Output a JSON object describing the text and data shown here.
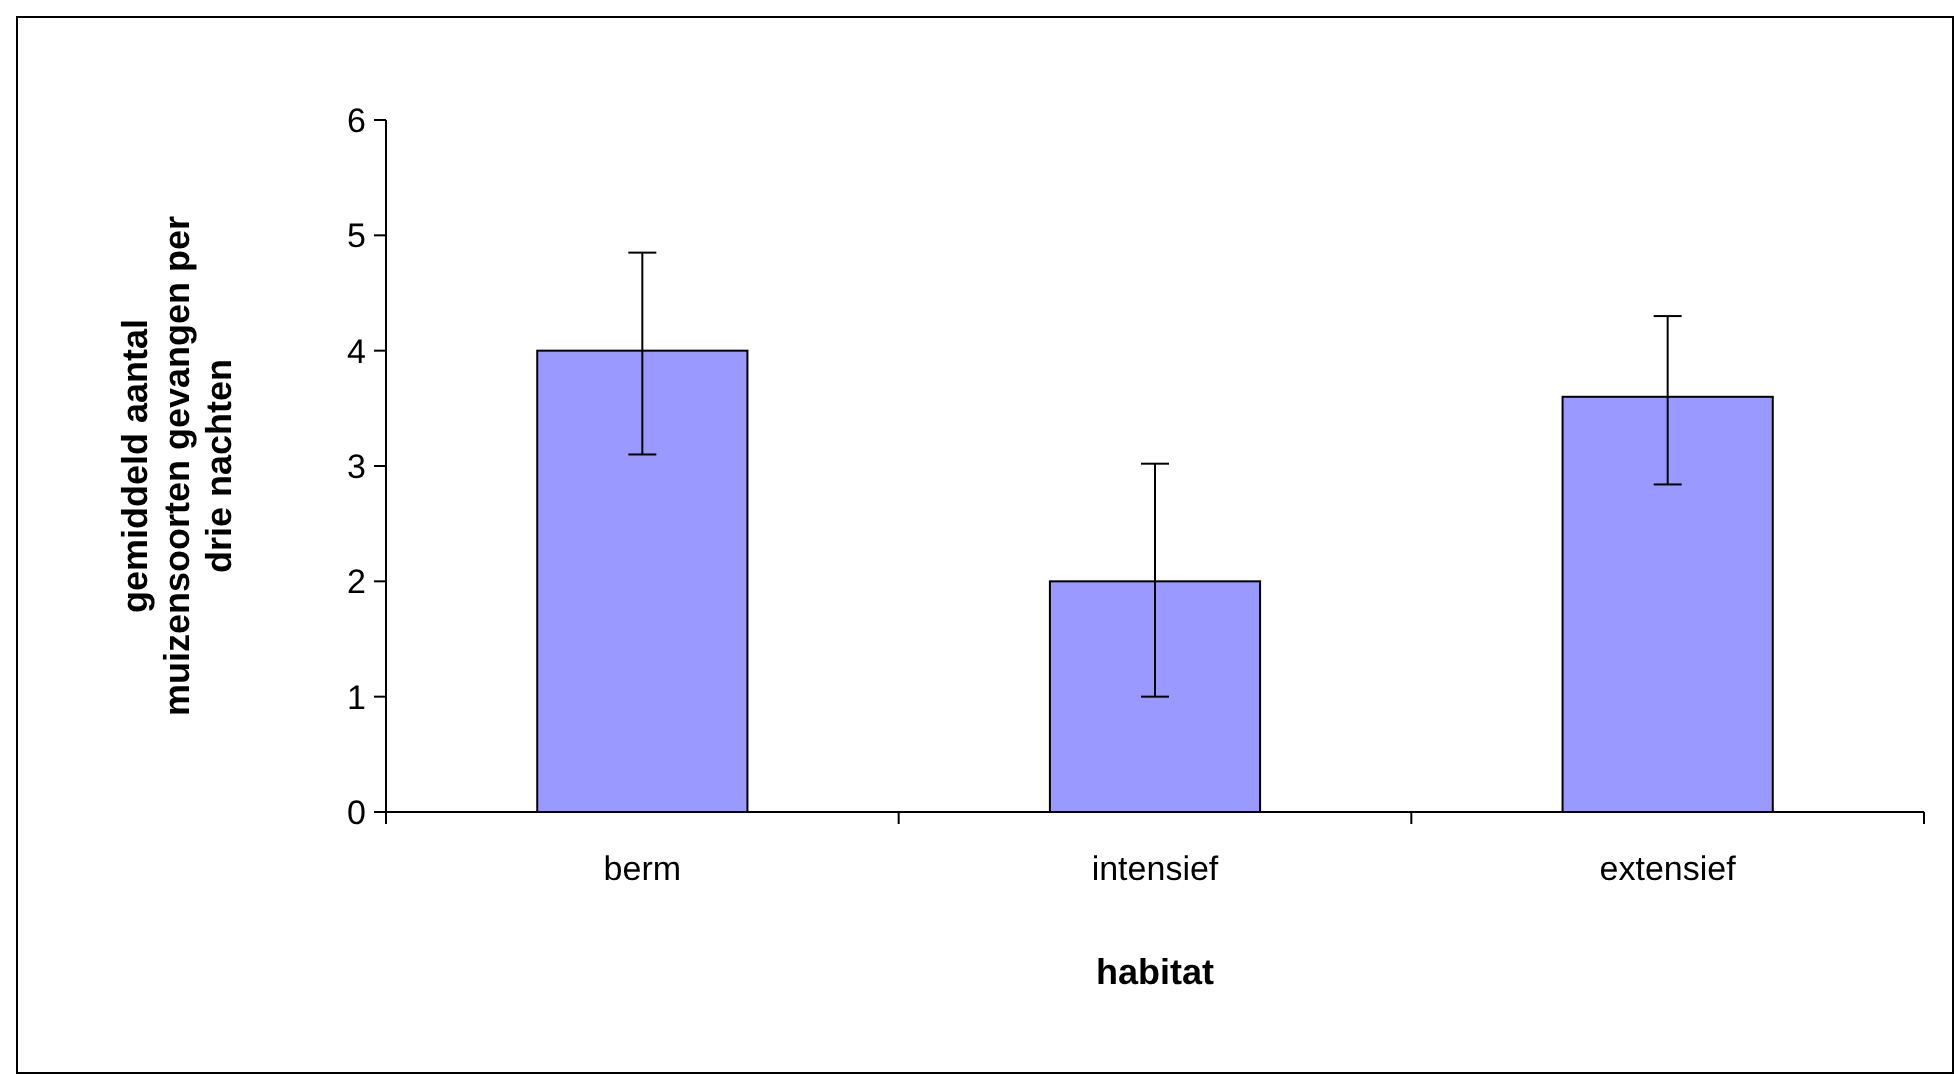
{
  "chart_data": {
    "type": "bar",
    "xlabel": "habitat",
    "ylabel": "gemiddeld aantal muizensoorten gevangen per drie nachten",
    "categories": [
      "berm",
      "intensief",
      "extensief"
    ],
    "values": [
      4.0,
      2.0,
      3.6
    ],
    "errors": [
      [
        3.1,
        4.85
      ],
      [
        1.0,
        3.02
      ],
      [
        2.84,
        4.3
      ]
    ],
    "color": "#9999ff",
    "ylim": [
      0,
      6
    ],
    "yticks": [
      0,
      1,
      2,
      3,
      4,
      5,
      6
    ],
    "grid": false
  }
}
